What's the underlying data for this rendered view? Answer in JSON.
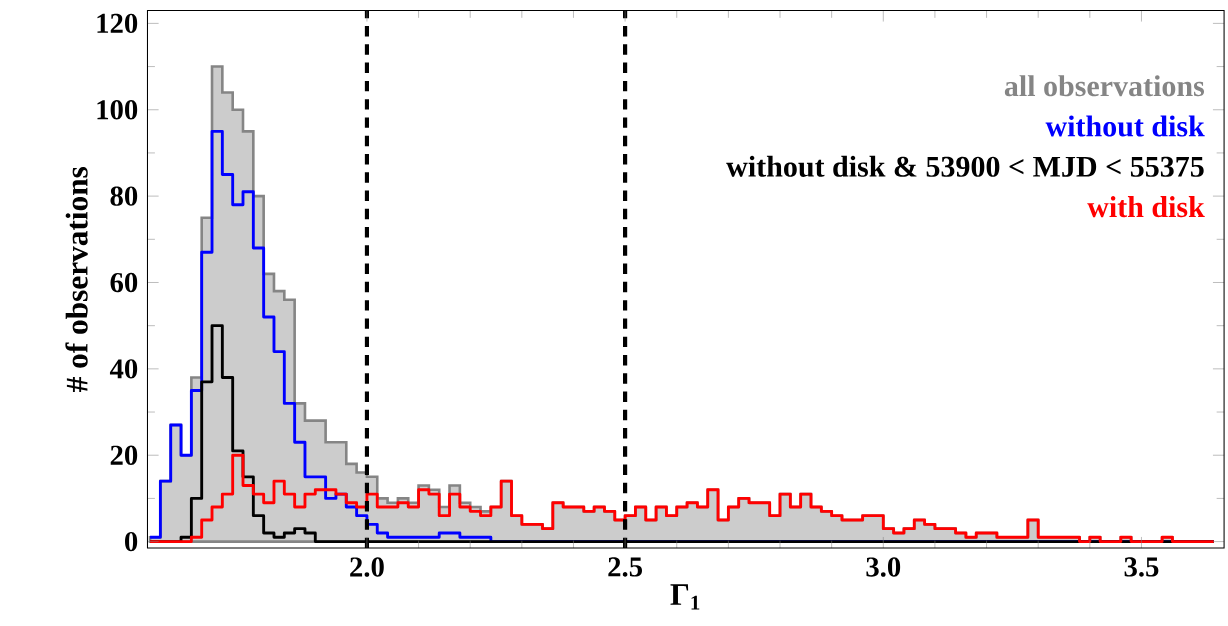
{
  "chart_data": {
    "type": "histogram",
    "xlabel": "Γ$_{1}$",
    "ylabel": "# of observations",
    "xlim": [
      1.575,
      3.66
    ],
    "ylim": [
      -1.5,
      123
    ],
    "xticks": [
      {
        "value": 2,
        "label": "2.0"
      },
      {
        "value": 2.5,
        "label": "2.5"
      },
      {
        "value": 3,
        "label": "3.0"
      },
      {
        "value": 3.5,
        "label": "3.5"
      }
    ],
    "yticks": [
      0,
      20,
      40,
      60,
      80,
      100,
      120
    ],
    "legend": "top right",
    "ref_lines": [
      {
        "axis": "x",
        "value": 2.0,
        "color": "#000000",
        "line_style": "dashed"
      },
      {
        "axis": "x",
        "value": 2.5,
        "color": "#000000",
        "line_style": "dashed"
      }
    ],
    "bins": [
      1.58,
      1.6,
      1.62,
      1.64,
      1.66,
      1.68,
      1.7,
      1.72,
      1.74,
      1.76,
      1.78,
      1.8,
      1.82,
      1.84,
      1.86,
      1.88,
      1.9,
      1.92,
      1.94,
      1.96,
      1.98,
      2.0,
      2.02,
      2.04,
      2.06,
      2.08,
      2.1,
      2.12,
      2.14,
      2.16,
      2.18,
      2.2,
      2.22,
      2.24,
      2.26,
      2.28,
      2.3,
      2.32,
      2.34,
      2.36,
      2.38,
      2.4,
      2.42,
      2.44,
      2.46,
      2.48,
      2.5,
      2.52,
      2.54,
      2.56,
      2.58,
      2.6,
      2.62,
      2.64,
      2.66,
      2.68,
      2.7,
      2.72,
      2.74,
      2.76,
      2.78,
      2.8,
      2.82,
      2.84,
      2.86,
      2.88,
      2.9,
      2.92,
      2.94,
      2.96,
      2.98,
      3.0,
      3.02,
      3.04,
      3.06,
      3.08,
      3.1,
      3.12,
      3.14,
      3.16,
      3.18,
      3.2,
      3.22,
      3.24,
      3.26,
      3.28,
      3.3,
      3.32,
      3.34,
      3.36,
      3.38,
      3.4,
      3.42,
      3.44,
      3.46,
      3.48,
      3.5,
      3.52,
      3.54,
      3.56,
      3.58,
      3.6,
      3.62,
      3.64
    ],
    "series": [
      {
        "name": "all observations",
        "color": "#cccccc",
        "values": [
          1,
          14,
          27,
          20,
          38,
          75,
          110,
          104,
          100,
          95,
          80,
          62,
          58,
          56,
          32,
          28,
          28,
          23,
          23,
          18,
          16,
          15,
          10,
          9,
          10,
          9,
          13,
          12,
          8,
          13,
          9,
          8,
          7,
          8,
          14,
          6,
          4,
          4,
          3,
          9,
          8,
          8,
          7,
          8,
          7,
          5,
          6,
          8,
          5,
          8,
          6,
          8,
          9,
          8,
          12,
          5,
          8,
          10,
          9,
          9,
          6,
          11,
          8,
          11,
          8,
          7,
          6,
          5,
          5,
          6,
          6,
          3,
          2,
          3,
          5,
          4,
          3,
          3,
          2,
          1,
          2,
          2,
          1,
          1,
          1,
          5,
          1,
          1,
          1,
          1,
          0,
          1,
          0,
          0,
          1,
          0,
          0,
          0,
          1,
          0,
          0,
          0,
          0
        ]
      },
      {
        "name": "without disk",
        "color": "#0000ff",
        "values": [
          1,
          14,
          27,
          20,
          35,
          67,
          95,
          85,
          78,
          81,
          68,
          52,
          44,
          32,
          23,
          15,
          15,
          10,
          11,
          8,
          6,
          4,
          2,
          1,
          1,
          1,
          1,
          1,
          2,
          2,
          1,
          1,
          1,
          0,
          0,
          0,
          0,
          0,
          0,
          0,
          0,
          0,
          0,
          0,
          0,
          0,
          0,
          0,
          0,
          0,
          0,
          0,
          0,
          0,
          0,
          0,
          0,
          0,
          0,
          0,
          0,
          0,
          0,
          0,
          0,
          0,
          0,
          0,
          0,
          0,
          0,
          0,
          0,
          0,
          0,
          0,
          0,
          0,
          0,
          0,
          0,
          0,
          0,
          0,
          0,
          0,
          0,
          0,
          0,
          0,
          0,
          0,
          0,
          0,
          0,
          0,
          0,
          0,
          0,
          0,
          0,
          0,
          0
        ]
      },
      {
        "name": "without disk & 53900 < MJD < 55375",
        "color": "#000000",
        "values": [
          0,
          0,
          0,
          1,
          10,
          37,
          50,
          38,
          21,
          15,
          6,
          2,
          1,
          2,
          3,
          2,
          0,
          0,
          0,
          0,
          0,
          0,
          0,
          0,
          0,
          0,
          0,
          0,
          0,
          0,
          0,
          0,
          0,
          0,
          0,
          0,
          0,
          0,
          0,
          0,
          0,
          0,
          0,
          0,
          0,
          0,
          0,
          0,
          0,
          0,
          0,
          0,
          0,
          0,
          0,
          0,
          0,
          0,
          0,
          0,
          0,
          0,
          0,
          0,
          0,
          0,
          0,
          0,
          0,
          0,
          0,
          0,
          0,
          0,
          0,
          0,
          0,
          0,
          0,
          0,
          0,
          0,
          0,
          0,
          0,
          0,
          0,
          0,
          0,
          0,
          0,
          0,
          0,
          0,
          0,
          0,
          0,
          0,
          0,
          0,
          0,
          0,
          0
        ]
      },
      {
        "name": "with disk",
        "color": "#ff0000",
        "values": [
          0,
          0,
          0,
          0,
          1,
          5,
          8,
          11,
          20,
          13,
          11,
          9,
          14,
          11,
          8,
          11,
          12,
          12,
          11,
          9,
          8,
          11,
          8,
          8,
          9,
          8,
          12,
          11,
          6,
          11,
          8,
          7,
          6,
          8,
          14,
          6,
          4,
          4,
          3,
          9,
          8,
          8,
          7,
          8,
          7,
          5,
          6,
          8,
          5,
          8,
          6,
          8,
          9,
          8,
          12,
          5,
          8,
          10,
          9,
          9,
          6,
          11,
          8,
          11,
          8,
          7,
          6,
          5,
          5,
          6,
          6,
          3,
          2,
          3,
          5,
          4,
          3,
          3,
          2,
          1,
          2,
          2,
          1,
          1,
          1,
          5,
          1,
          1,
          1,
          1,
          0,
          1,
          0,
          0,
          1,
          0,
          0,
          0,
          1,
          0,
          0,
          0,
          0
        ]
      }
    ]
  }
}
